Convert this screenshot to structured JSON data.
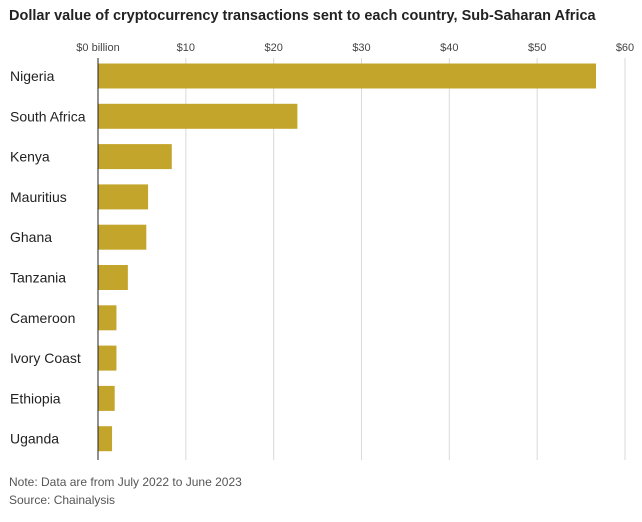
{
  "chart_data": {
    "type": "bar",
    "orientation": "horizontal",
    "title": "Dollar value of cryptocurrency transactions sent to each country, Sub-Saharan Africa",
    "categories": [
      "Nigeria",
      "South Africa",
      "Kenya",
      "Mauritius",
      "Ghana",
      "Tanzania",
      "Cameroon",
      "Ivory Coast",
      "Ethiopia",
      "Uganda"
    ],
    "values": [
      56.7,
      22.7,
      8.4,
      5.7,
      5.5,
      3.4,
      2.1,
      2.1,
      1.9,
      1.6
    ],
    "unit": "billion USD",
    "xlim": [
      0,
      60
    ],
    "ticks": [
      0,
      10,
      20,
      30,
      40,
      50,
      60
    ],
    "tick_labels": [
      "$0 billion",
      "$10",
      "$20",
      "$30",
      "$40",
      "$50",
      "$60"
    ],
    "grid": true,
    "bar_color": "#c4a52b",
    "xlabel": "",
    "ylabel": ""
  },
  "footer": {
    "note": "Note: Data are from July 2022 to June 2023",
    "source": "Source: Chainalysis"
  }
}
